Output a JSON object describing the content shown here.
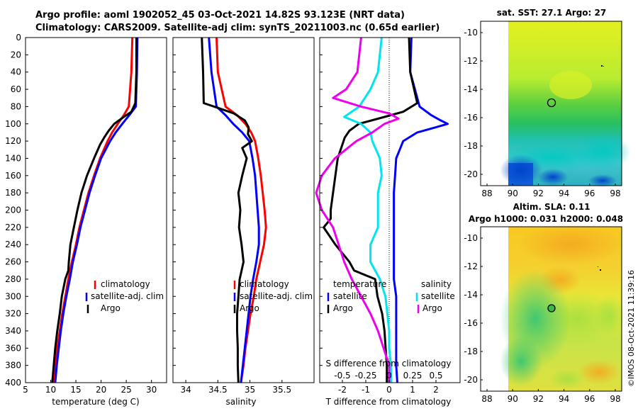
{
  "title": {
    "line1": "Argo profile: aoml 1902052_45 03-Oct-2021 14.82S 93.123E (NRT data)",
    "line2": "Climatology: CARS2009. Satellite-adj clim: synTS_20211003.nc (0.65d earlier)"
  },
  "credit": "©IMOS 08-Oct-2021 11:39:16",
  "colors": {
    "climatology": "#ff0000",
    "satellite": "#0000ff",
    "argo": "#000000",
    "sat_diff_salinity": "#00e5ee",
    "argo_diff_salinity": "#ee00ee"
  },
  "chart_data": [
    {
      "type": "line",
      "panel": "temperature",
      "xlabel": "temperature (deg C)",
      "xlim": [
        5,
        33
      ],
      "xticks": [
        5,
        10,
        15,
        20,
        25,
        30
      ],
      "ylim": [
        0,
        400
      ],
      "yticks": [
        0,
        20,
        40,
        60,
        80,
        100,
        120,
        140,
        160,
        180,
        200,
        220,
        240,
        260,
        280,
        300,
        320,
        340,
        360,
        380,
        400
      ],
      "legend": [
        "climatology",
        "satellite-adj. clim",
        "Argo"
      ],
      "series": [
        {
          "name": "climatology",
          "color": "#ff0000",
          "depth": [
            0,
            40,
            80,
            90,
            100,
            110,
            120,
            140,
            160,
            180,
            200,
            220,
            240,
            260,
            280,
            300,
            320,
            340,
            360,
            380,
            400
          ],
          "values": [
            26.2,
            26.0,
            25.5,
            24.5,
            23.3,
            22.2,
            21.3,
            19.8,
            18.6,
            17.5,
            16.6,
            15.7,
            15.0,
            14.2,
            13.5,
            12.9,
            12.3,
            11.8,
            11.3,
            10.9,
            10.5
          ]
        },
        {
          "name": "satellite-adj. clim",
          "color": "#0000ff",
          "depth": [
            0,
            40,
            80,
            90,
            100,
            110,
            120,
            140,
            160,
            180,
            200,
            220,
            240,
            260,
            280,
            300,
            320,
            340,
            360,
            380,
            400
          ],
          "values": [
            27.2,
            27.1,
            26.9,
            25.6,
            24.2,
            22.9,
            21.8,
            20.0,
            18.8,
            17.7,
            16.8,
            15.9,
            15.2,
            14.4,
            13.8,
            13.1,
            12.5,
            12.0,
            11.6,
            11.2,
            10.9
          ]
        },
        {
          "name": "Argo",
          "color": "#000000",
          "depth": [
            0,
            40,
            76,
            86,
            92,
            100,
            108,
            116,
            124,
            140,
            160,
            180,
            200,
            220,
            240,
            260,
            270,
            280,
            300,
            320,
            340,
            360,
            380,
            400
          ],
          "values": [
            27.0,
            27.0,
            26.8,
            26.0,
            24.5,
            22.6,
            21.5,
            20.6,
            19.8,
            18.6,
            17.2,
            16.1,
            15.3,
            14.6,
            13.9,
            13.6,
            13.5,
            12.9,
            12.2,
            11.8,
            11.3,
            10.9,
            10.6,
            10.3
          ]
        }
      ]
    },
    {
      "type": "line",
      "panel": "salinity",
      "xlabel": "salinity",
      "xlim": [
        33.8,
        36.0
      ],
      "xticks": [
        34,
        34.5,
        35,
        35.5
      ],
      "ylim": [
        0,
        400
      ],
      "legend": [
        "climatology",
        "satellite-adj. clim",
        "Argo"
      ],
      "series": [
        {
          "name": "climatology",
          "color": "#ff0000",
          "depth": [
            0,
            40,
            80,
            90,
            100,
            110,
            120,
            140,
            160,
            180,
            200,
            220,
            240,
            260,
            280,
            300,
            320,
            340,
            360,
            380,
            400
          ],
          "values": [
            34.48,
            34.5,
            34.62,
            34.8,
            34.93,
            35.02,
            35.08,
            35.13,
            35.17,
            35.2,
            35.23,
            35.25,
            35.22,
            35.16,
            35.1,
            35.06,
            35.01,
            34.97,
            34.93,
            34.9,
            34.86
          ]
        },
        {
          "name": "satellite-adj. clim",
          "color": "#0000ff",
          "depth": [
            0,
            40,
            80,
            90,
            100,
            110,
            120,
            140,
            160,
            180,
            200,
            220,
            240,
            260,
            280,
            300,
            320,
            340,
            360,
            380,
            400
          ],
          "values": [
            34.36,
            34.4,
            34.48,
            34.62,
            34.74,
            34.88,
            34.99,
            35.04,
            35.08,
            35.1,
            35.12,
            35.14,
            35.14,
            35.1,
            35.05,
            35.01,
            34.98,
            34.95,
            34.92,
            34.89,
            34.86
          ]
        },
        {
          "name": "Argo",
          "color": "#000000",
          "depth": [
            0,
            40,
            76,
            82,
            88,
            96,
            104,
            112,
            120,
            128,
            140,
            160,
            180,
            200,
            220,
            240,
            260,
            280,
            300,
            320,
            340,
            360,
            380,
            400
          ],
          "values": [
            34.25,
            34.27,
            34.28,
            34.52,
            34.75,
            34.92,
            34.98,
            34.97,
            35.03,
            34.88,
            34.95,
            34.88,
            34.82,
            34.85,
            34.83,
            34.87,
            34.9,
            34.84,
            34.82,
            34.8,
            34.8,
            34.81,
            34.81,
            34.82
          ]
        }
      ]
    },
    {
      "type": "line",
      "panel": "differences",
      "xlabel": "T difference from climatology",
      "xlabel_top": "S difference from climatology",
      "xlim": [
        -3,
        3
      ],
      "xticks": [
        -2,
        -1,
        0,
        1,
        2
      ],
      "xticks_salinity": [
        "-0.5",
        "-0.25",
        "0",
        "0.25",
        "0.5"
      ],
      "ylim": [
        0,
        400
      ],
      "legend": [
        "temperature",
        "satellite",
        "Argo",
        "salinity",
        "satellite",
        "Argo"
      ],
      "series": [
        {
          "name": "temperature satellite",
          "color": "#0000ff",
          "depth": [
            0,
            40,
            80,
            90,
            96,
            100,
            104,
            110,
            120,
            140,
            160,
            180,
            200,
            220,
            240,
            260,
            280,
            300,
            320,
            340,
            360,
            380,
            400
          ],
          "values": [
            0.95,
            0.9,
            1.3,
            1.8,
            2.2,
            2.5,
            2.0,
            1.2,
            0.6,
            0.3,
            0.25,
            0.2,
            0.2,
            0.2,
            0.2,
            0.2,
            0.2,
            0.3,
            0.3,
            0.3,
            0.3,
            0.3,
            0.35
          ]
        },
        {
          "name": "temperature Argo",
          "color": "#000000",
          "depth": [
            0,
            40,
            76,
            86,
            92,
            100,
            108,
            116,
            124,
            140,
            160,
            180,
            200,
            210,
            220,
            240,
            260,
            270,
            280,
            300,
            320,
            340,
            360,
            380,
            400
          ],
          "values": [
            0.85,
            0.9,
            1.2,
            0.6,
            -0.2,
            -1.3,
            -1.7,
            -1.9,
            -2.0,
            -2.2,
            -2.3,
            -2.4,
            -2.5,
            -2.5,
            -2.8,
            -2.3,
            -1.7,
            -1.5,
            -0.6,
            -0.5,
            -0.3,
            -0.2,
            -0.15,
            -0.1,
            -0.1
          ]
        },
        {
          "name": "salinity satellite",
          "color": "#00e5ee",
          "depth": [
            0,
            40,
            60,
            80,
            92,
            100,
            110,
            120,
            140,
            160,
            180,
            200,
            220,
            240,
            260,
            280,
            300,
            320,
            340,
            360,
            380,
            400
          ],
          "values": [
            -0.08,
            -0.12,
            -0.2,
            -0.32,
            -0.48,
            -0.3,
            -0.2,
            -0.18,
            -0.1,
            -0.08,
            -0.12,
            -0.12,
            -0.12,
            -0.2,
            -0.2,
            -0.1,
            -0.04,
            -0.02,
            0.0,
            0.0,
            0.02,
            0.02
          ]
        },
        {
          "name": "salinity Argo",
          "color": "#ee00ee",
          "depth": [
            0,
            40,
            60,
            70,
            80,
            88,
            94,
            100,
            110,
            120,
            140,
            160,
            180,
            200,
            220,
            240,
            260,
            280,
            300,
            320,
            340,
            360,
            380,
            400
          ],
          "values": [
            -0.3,
            -0.34,
            -0.46,
            -0.6,
            -0.3,
            0.0,
            0.1,
            -0.05,
            -0.18,
            -0.35,
            -0.58,
            -0.72,
            -0.78,
            -0.72,
            -0.6,
            -0.54,
            -0.48,
            -0.4,
            -0.3,
            -0.2,
            -0.12,
            -0.06,
            0.0,
            0.0
          ]
        }
      ]
    },
    {
      "type": "heatmap",
      "panel": "sst-map",
      "title": "sat. SST: 27.1 Argo: 27",
      "xticks": [
        88,
        90,
        92,
        94,
        96,
        98
      ],
      "yticks": [
        -10,
        -12,
        -14,
        -16,
        -18,
        -20
      ],
      "xlim": [
        87.5,
        98.5
      ],
      "ylim": [
        -20.8,
        -9.2
      ],
      "argo_position": [
        93.123,
        -14.82
      ]
    },
    {
      "type": "heatmap",
      "panel": "sla-map",
      "title_line1": "Altim. SLA: 0.11",
      "title_line2": "Argo h1000: 0.031 h2000: 0.048",
      "xticks": [
        88,
        90,
        92,
        94,
        96,
        98
      ],
      "yticks": [
        -10,
        -12,
        -14,
        -16,
        -18,
        -20
      ],
      "xlim": [
        87.5,
        98.5
      ],
      "ylim": [
        -20.8,
        -9.2
      ],
      "argo_position": [
        93.123,
        -14.82
      ]
    }
  ]
}
